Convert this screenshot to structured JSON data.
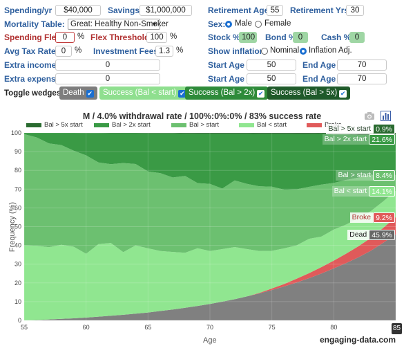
{
  "form": {
    "spending_label": "Spending/yr",
    "spending_value": "$40,000",
    "savings_label": "Savings",
    "savings_value": "$1,000,000",
    "retirement_age_label": "Retirement Age",
    "retirement_age_value": "55",
    "retirement_yrs_label": "Retirement Yrs",
    "retirement_yrs_value": "30",
    "mortality_label": "Mortality Table:",
    "mortality_value": "Great: Healthy Non-Smoker",
    "sex_label": "Sex:",
    "sex_male": "Male",
    "sex_female": "Female",
    "sex_selected": "Male",
    "spending_flex_label": "Spending Flex",
    "spending_flex_value": "0",
    "spending_flex_unit": "%",
    "flex_threshold_label": "Flex Threshold",
    "flex_threshold_value": "100",
    "flex_threshold_unit": "%",
    "stock_label": "Stock %",
    "stock_value": "100",
    "bond_label": "Bond %",
    "bond_value": "0",
    "cash_label": "Cash %",
    "cash_value": "0",
    "tax_label": "Avg Tax Rate",
    "tax_value": "0",
    "tax_unit": "%",
    "fees_label": "Investment Fees",
    "fees_value": "1.3",
    "fees_unit": "%",
    "inflation_label": "Show inflation:",
    "inflation_nominal": "Nominal",
    "inflation_adj": "Inflation Adj.",
    "inflation_selected": "Inflation Adj.",
    "extra_income_label": "Extra income",
    "extra_income_value": "0",
    "extra_expense_label": "Extra expense",
    "extra_expense_value": "0",
    "start_age_label": "Start Age",
    "end_age_label": "End Age",
    "income_start": "50",
    "income_end": "70",
    "expense_start": "50",
    "expense_end": "70"
  },
  "toggles": {
    "label": "Toggle wedges:",
    "items": [
      {
        "label": "Death",
        "checked": true,
        "color": "#7d7d7d"
      },
      {
        "label": "Success (Bal < start)",
        "checked": true,
        "color": "#8fdf8f"
      },
      {
        "label": "Success (Bal > 2x)",
        "checked": true,
        "color": "#2e8b3a"
      },
      {
        "label": "Success (Bal > 5x)",
        "checked": true,
        "color": "#1f5a2a"
      }
    ]
  },
  "icons": {
    "camera": "camera-icon",
    "chart": "bar-chart-icon"
  },
  "watermark": "engaging-data.com",
  "chart_data": {
    "type": "area",
    "title": "M / 4.0% withdrawal rate / 100%:0%:0% / 83% success rate",
    "xlabel": "Age",
    "ylabel": "Frequency (%)",
    "xlim": [
      55,
      85
    ],
    "ylim": [
      0,
      100
    ],
    "x_ticks": [
      55,
      60,
      65,
      70,
      75,
      80,
      85
    ],
    "y_ticks": [
      0,
      10,
      20,
      30,
      40,
      50,
      60,
      70,
      80,
      90,
      100
    ],
    "legend": [
      "Bal > 5x start",
      "Bal > 2x start",
      "Bal > start",
      "Bal < start",
      "Broke"
    ],
    "x": [
      55,
      56,
      57,
      58,
      59,
      60,
      61,
      62,
      63,
      64,
      65,
      66,
      67,
      68,
      69,
      70,
      71,
      72,
      73,
      74,
      75,
      76,
      77,
      78,
      79,
      80,
      81,
      82,
      83,
      84,
      85
    ],
    "series": [
      {
        "name": "Dead",
        "color": "#808080",
        "values": [
          0,
          0.2,
          0.5,
          0.8,
          1.1,
          1.5,
          2,
          2.5,
          3,
          3.6,
          4.2,
          5,
          5.8,
          6.7,
          7.7,
          8.8,
          10,
          11.3,
          12.8,
          14.4,
          16.2,
          18.1,
          20.2,
          22.5,
          25,
          27.7,
          30.6,
          33.7,
          37.2,
          41.4,
          45.9
        ]
      },
      {
        "name": "Broke",
        "color": "#e05a5a",
        "values": [
          0,
          0,
          0,
          0,
          0,
          0,
          0,
          0,
          0,
          0,
          0,
          0,
          0,
          0,
          0,
          0,
          0,
          0,
          0,
          0.3,
          0.8,
          1.3,
          2,
          2.7,
          3.4,
          4.2,
          5,
          5.9,
          6.8,
          8,
          9.2
        ]
      },
      {
        "name": "Bal < start",
        "color": "#90e690",
        "values": [
          40,
          39.6,
          38.5,
          39.5,
          38.2,
          34,
          38.7,
          38.8,
          33.4,
          36.4,
          34.2,
          32,
          30.7,
          29.4,
          30.8,
          28.2,
          28,
          27.8,
          25.2,
          22.3,
          20.1,
          19,
          17.8,
          18.3,
          16.3,
          16.5,
          15.5,
          14.9,
          14.3,
          14.1,
          14.1
        ]
      },
      {
        "name": "Bal > start",
        "color": "#6cc070",
        "values": [
          59.3,
          57.8,
          55.4,
          53.2,
          51.2,
          52.5,
          43.5,
          42,
          47.5,
          43.4,
          41,
          41.5,
          39.7,
          40.9,
          34.7,
          35.8,
          32.3,
          35.5,
          34.8,
          34.5,
          34.2,
          31.3,
          29.9,
          27.7,
          27.7,
          24.9,
          23.8,
          21.6,
          19.5,
          12.5,
          8.4
        ]
      },
      {
        "name": "Bal > 2x start",
        "color": "#3a9a45",
        "values": [
          0.7,
          2.4,
          5.6,
          6.5,
          9.5,
          11.9,
          15.7,
          16.5,
          15.9,
          16.4,
          20.3,
          21.2,
          23.5,
          22.6,
          26.3,
          26.7,
          29.2,
          24.9,
          26.7,
          27.9,
          28.1,
          29.7,
          29.4,
          28.1,
          27.1,
          25.9,
          24.3,
          22.8,
          21.1,
          22.6,
          21.6
        ]
      },
      {
        "name": "Bal > 5x start",
        "color": "#2a6b30",
        "values": [
          0,
          0,
          0,
          0,
          0,
          0.1,
          0.1,
          0.2,
          0.2,
          0.2,
          0.3,
          0.3,
          0.3,
          0.4,
          0.5,
          0.5,
          0.5,
          0.5,
          0.5,
          0.6,
          0.6,
          0.6,
          0.7,
          0.7,
          0.5,
          0.8,
          0.8,
          1.1,
          1.1,
          1.4,
          0.9
        ]
      }
    ],
    "end_labels": [
      {
        "name": "Bal > 5x start",
        "value": "0.9%",
        "color": "#2a6b30",
        "name_color": "#1f3b22"
      },
      {
        "name": "Bal > 2x start",
        "value": "21.6%",
        "color": "#3a9a45",
        "name_color": "#ffffff"
      },
      {
        "name": "Bal > start",
        "value": "8.4%",
        "color": "#6cc070",
        "name_color": "#ffffff"
      },
      {
        "name": "Bal < start",
        "value": "14.1%",
        "color": "#90e690",
        "name_color": "#ffffff"
      },
      {
        "name": "Broke",
        "value": "9.2%",
        "color": "#e05a5a",
        "name_color": "#b03030"
      },
      {
        "name": "Dead",
        "value": "45.9%",
        "color": "#666666",
        "name_color": "#222222"
      }
    ],
    "end_age_badge": "85"
  }
}
